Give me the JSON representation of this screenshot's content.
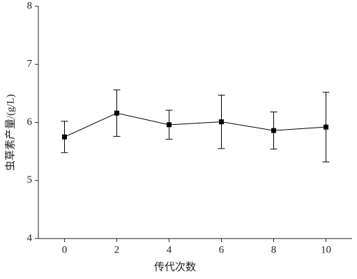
{
  "chart_data": {
    "type": "line",
    "x_label": "传代次数",
    "y_label": "虫草素产量/(g/L)",
    "x": [
      0,
      2,
      4,
      6,
      8,
      10
    ],
    "values": [
      5.75,
      6.16,
      5.96,
      6.01,
      5.86,
      5.92
    ],
    "errors": [
      0.27,
      0.4,
      0.25,
      0.46,
      0.32,
      0.6
    ],
    "color": "#000000",
    "xlim": [
      -1,
      11
    ],
    "xticks": [
      0,
      2,
      4,
      6,
      8,
      10
    ],
    "ylim": [
      4,
      8
    ],
    "yticks": [
      4,
      5,
      6,
      7,
      8
    ]
  }
}
